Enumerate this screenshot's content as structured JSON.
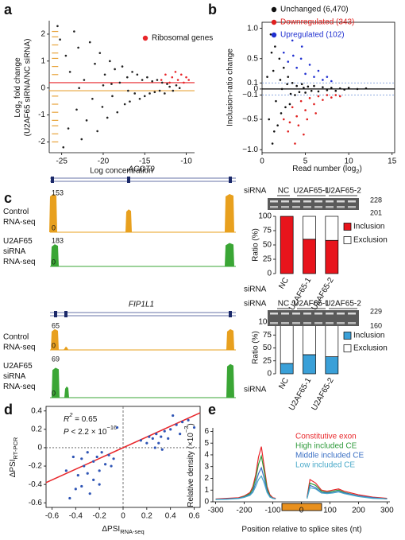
{
  "panel_labels": [
    "a",
    "b",
    "c",
    "d",
    "e"
  ],
  "chart_data": [
    {
      "type": "scatter",
      "xlabel": "Log concentration",
      "ylabel": [
        "Log",
        "2",
        " fold change",
        "(U2AF65 siRNA/NC siRNA)"
      ],
      "xlim": [
        -26.5,
        -9
      ],
      "xticks": [
        -25,
        -20,
        -15,
        -10
      ],
      "ylim": [
        -2.4,
        2.5
      ],
      "yticks": [
        -2,
        -1,
        0,
        1,
        2
      ],
      "hlines": [
        {
          "value": 0.2,
          "color": "#e8262a"
        },
        {
          "value": -0.1,
          "color": "#e8a33a"
        }
      ],
      "series": [
        {
          "color": "#222222",
          "x": [
            -25.5,
            -25.2,
            -24.8,
            -24.5,
            -24.2,
            -24,
            -23.5,
            -23.2,
            -23,
            -22.6,
            -22.3,
            -22,
            -21.6,
            -21.3,
            -21,
            -20.7,
            -20.4,
            -20.1,
            -19.8,
            -19.5,
            -19.2,
            -18.9,
            -18.6,
            -18.3,
            -18,
            -17.7,
            -17.4,
            -17.1,
            -16.8,
            -16.5,
            -16.2,
            -15.9,
            -15.6,
            -15.3,
            -15,
            -14.7,
            -14.4,
            -14.1,
            -13.8,
            -13.5,
            -13.2,
            -12.9,
            -12.6,
            -12.3,
            -12,
            -11.6,
            -11.2,
            -10.8,
            -22.9,
            -20,
            -17,
            -19
          ],
          "values": [
            2.3,
            1.8,
            -2.2,
            1.2,
            -1.5,
            0.6,
            2.1,
            -0.8,
            1.5,
            -1.9,
            0.3,
            -1.2,
            1.7,
            -0.4,
            0.9,
            -1.6,
            1.3,
            -0.7,
            0.5,
            -1.1,
            1,
            -0.3,
            0.7,
            -0.9,
            0.2,
            0.8,
            -0.6,
            0.4,
            -0.5,
            0.6,
            -0.2,
            0.5,
            -0.4,
            0.3,
            -0.3,
            0.4,
            -0.2,
            0.25,
            -0.15,
            0.3,
            -0.1,
            0.2,
            -0.2,
            0.15,
            0.05,
            -0.1,
            0.1,
            0,
            0,
            0.1,
            -0.1,
            0.15
          ]
        },
        {
          "color": "#e8a33a",
          "marker": "dash",
          "x": [
            -25.8,
            -25.8,
            -25.8,
            -25.8,
            -25.8,
            -25.8,
            -25.8,
            -25.8,
            -25.8,
            -25.8,
            -25.8,
            -25.8,
            -25.8,
            -25.8
          ],
          "values": [
            2.1,
            1.9,
            1.6,
            1.3,
            1.1,
            0.8,
            0.5,
            -0.3,
            -0.6,
            -0.9,
            -1.2,
            -1.4,
            -1.7,
            -2.0
          ]
        },
        {
          "name": "Ribosomal genes",
          "color": "#e8262a",
          "x": [
            -13,
            -12.5,
            -12,
            -11.7,
            -11.3,
            -11,
            -10.6,
            -10.3,
            -10,
            -9.7
          ],
          "values": [
            0.3,
            0.5,
            0.2,
            0.4,
            0.6,
            0.3,
            0.5,
            0.2,
            0.4,
            0.3
          ]
        }
      ]
    },
    {
      "type": "scatter",
      "frame": true,
      "xlabel": [
        "Read number (log",
        "2",
        ")"
      ],
      "ylabel": "Inclusion-ratio change",
      "xlim": [
        0,
        15.3
      ],
      "xticks": [
        0,
        5,
        10,
        15
      ],
      "ylim": [
        -1.05,
        1.1
      ],
      "yticks": [
        {
          "value": 1,
          "label": "1.0"
        },
        0.5,
        0.1,
        0,
        {
          "value": -0.1,
          "label": "−0.1"
        },
        {
          "value": -0.5,
          "label": "−0.5"
        },
        {
          "value": -1,
          "label": "−1.0"
        }
      ],
      "hlines": [
        {
          "value": 0,
          "color": "#000000"
        },
        {
          "value": 0.1,
          "color": "#6a8fd8",
          "dash": true
        },
        {
          "value": -0.1,
          "color": "#6a8fd8",
          "dash": true
        }
      ],
      "series": [
        {
          "name": "Unchanged (6,470)",
          "color": "#111111",
          "x": [
            1,
            1.2,
            1.5,
            1.8,
            2,
            2.2,
            2.5,
            2.7,
            3,
            3.2,
            3.5,
            3.8,
            4,
            4.3,
            4.6,
            5,
            5.3,
            5.7,
            6,
            6.5,
            7,
            7.5,
            8,
            8.5,
            9,
            9.5,
            10,
            11,
            12,
            1.3,
            1.6,
            2.3,
            2.9,
            0.8,
            0.6,
            3.3,
            4.8,
            1.1,
            1.4,
            2.1
          ],
          "values": [
            0.9,
            -0.9,
            0.7,
            -0.6,
            0.5,
            -0.4,
            0.35,
            -0.3,
            0.2,
            -0.25,
            0.1,
            -0.1,
            0.05,
            -0.05,
            0.08,
            -0.06,
            0.04,
            -0.03,
            0.05,
            -0.04,
            0.03,
            -0.02,
            0.02,
            -0.03,
            0.01,
            -0.01,
            0.02,
            0,
            0.01,
            0.3,
            -0.2,
            0,
            0.08,
            -0.5,
            0.2,
            -0.08,
            0.02,
            0.6,
            -0.7,
            0.15
          ]
        },
        {
          "name": "Downregulated (343)",
          "color": "#e0201f",
          "x": [
            2.5,
            3,
            3.5,
            4,
            4.5,
            5,
            5.5,
            6,
            6.5,
            7,
            7.5,
            8,
            8.5,
            9,
            3.2,
            4.2,
            5.2,
            6.2,
            3.8,
            4.8
          ],
          "values": [
            -0.5,
            -0.7,
            -0.3,
            -0.45,
            -0.2,
            -0.35,
            -0.15,
            -0.25,
            -0.12,
            -0.18,
            -0.1,
            -0.14,
            -0.1,
            -0.12,
            -0.55,
            -0.6,
            -0.5,
            -0.4,
            -0.9,
            -0.75
          ]
        },
        {
          "name": "Upregulated (102)",
          "color": "#1f2fd0",
          "x": [
            2.5,
            3,
            3.5,
            4,
            4.5,
            5,
            5.5,
            6,
            6.5,
            7,
            7.5,
            8,
            3.6,
            4.6
          ],
          "values": [
            0.6,
            0.45,
            0.8,
            0.35,
            0.5,
            0.25,
            0.4,
            0.2,
            0.3,
            0.15,
            0.2,
            0.13,
            0.55,
            0.7
          ]
        }
      ]
    },
    {
      "type": "stacked_bar",
      "ylabel": "Ratio (%)",
      "xlabel": "siRNA",
      "categories": [
        "NC",
        "U2AF65-1",
        "U2AF65-2"
      ],
      "ylim": [
        0,
        100
      ],
      "yticks": [
        0,
        25,
        50,
        75,
        100
      ],
      "series": [
        {
          "name": "Inclusion",
          "color": "#e8141c",
          "values": [
            100,
            60,
            58
          ]
        },
        {
          "name": "Exclusion",
          "color": "#ffffff",
          "values": [
            0,
            40,
            42
          ]
        }
      ]
    },
    {
      "type": "stacked_bar",
      "ylabel": "Ratio (%)",
      "xlabel": "siRNA",
      "categories": [
        "NC",
        "U2AF65-1",
        "U2AF65-2"
      ],
      "ylim": [
        0,
        100
      ],
      "yticks": [
        0,
        25,
        50,
        75,
        100
      ],
      "series": [
        {
          "name": "Inclusion",
          "color": "#3aa0d8",
          "values": [
            20,
            37,
            33
          ]
        },
        {
          "name": "Exclusion",
          "color": "#ffffff",
          "values": [
            80,
            63,
            67
          ]
        }
      ]
    },
    {
      "type": "scatter",
      "frame": true,
      "xlabel": [
        "ΔPSI",
        "RNA-seq"
      ],
      "ylabel": [
        "ΔPSI",
        "RT-PCR"
      ],
      "annotations": [
        [
          "R",
          "2",
          " = 0.65"
        ],
        [
          "P",
          " <  2.2 × 10",
          "−16"
        ]
      ],
      "xlim": [
        -0.65,
        0.65
      ],
      "xticks": [
        -0.6,
        -0.4,
        -0.2,
        0,
        0.2,
        0.4,
        0.6
      ],
      "ylim": [
        -0.65,
        0.45
      ],
      "yticks": [
        -0.6,
        -0.4,
        -0.2,
        0,
        0.2,
        0.4
      ],
      "hlines": [
        {
          "value": 0,
          "color": "#555555",
          "dash": true
        }
      ],
      "vlines": [
        {
          "value": 0,
          "color": "#555555",
          "dash": true
        }
      ],
      "fit_line": {
        "color": "#e8262a",
        "x": [
          -0.65,
          0.65
        ],
        "y": [
          -0.38,
          0.38
        ]
      },
      "series": [
        {
          "color": "#2f55b5",
          "x": [
            -0.45,
            -0.4,
            -0.38,
            -0.35,
            -0.33,
            -0.3,
            -0.3,
            -0.28,
            -0.25,
            -0.25,
            -0.22,
            -0.2,
            -0.18,
            -0.15,
            -0.12,
            -0.1,
            -0.35,
            -0.42,
            -0.48,
            -0.2,
            0.2,
            0.22,
            0.25,
            0.28,
            0.3,
            0.32,
            0.35,
            0.38,
            0.4,
            0.45,
            0.5,
            0.55,
            0.6,
            0.48,
            0.27,
            0.33,
            0.42,
            -0.05,
            0.15,
            -0.08
          ],
          "values": [
            -0.55,
            -0.45,
            -0.3,
            -0.12,
            -0.2,
            -0.05,
            -0.28,
            -0.5,
            -0.15,
            -0.35,
            -0.1,
            -0.25,
            -0.05,
            -0.18,
            -0.08,
            -0.2,
            -0.42,
            -0.1,
            -0.25,
            -0.4,
            0.05,
            0.12,
            0.1,
            0.15,
            0.05,
            0.12,
            0.18,
            0.1,
            0.2,
            0.25,
            0.28,
            0.3,
            0.22,
            0.15,
            0,
            -0.02,
            0.35,
            0.22,
            0.08,
            -0.12
          ]
        }
      ]
    },
    {
      "type": "line",
      "xlabel": "Position relative to splice sites (nt)",
      "ylabel": [
        "Relative density (×10",
        "−3",
        ")"
      ],
      "xlim": [
        -310,
        310
      ],
      "xticks": [
        -300,
        -200,
        -100,
        0,
        100,
        200,
        300
      ],
      "ylim": [
        0,
        6.3
      ],
      "yticks": [
        0,
        1,
        2,
        3,
        4,
        5,
        6
      ],
      "x": [
        -300,
        -260,
        -220,
        -200,
        -180,
        -170,
        -160,
        -150,
        -140,
        -130,
        -120,
        -110,
        -100,
        -90,
        -40,
        20,
        30,
        50,
        70,
        90,
        110,
        130,
        150,
        200,
        250,
        300
      ],
      "series": [
        {
          "name": "Constitutive exon",
          "color": "#e8262a",
          "values": [
            0.25,
            0.3,
            0.35,
            0.5,
            0.8,
            1.3,
            2.3,
            3.8,
            4.7,
            3.0,
            1.3,
            0.6,
            0.35,
            0.3,
            null,
            0.4,
            1.9,
            1.6,
            1.0,
            0.9,
            1.0,
            1.1,
            0.9,
            0.6,
            0.4,
            0.3
          ]
        },
        {
          "name": "High included CE",
          "color": "#2e9a3a",
          "values": [
            0.2,
            0.25,
            0.3,
            0.45,
            0.7,
            1.1,
            2.0,
            3.2,
            3.9,
            2.6,
            1.1,
            0.5,
            0.3,
            0.25,
            null,
            0.3,
            1.6,
            1.4,
            0.9,
            0.8,
            0.9,
            1.0,
            0.8,
            0.5,
            0.35,
            0.25
          ]
        },
        {
          "name": "Middle included CE",
          "color": "#3a6fc4",
          "values": [
            0.2,
            0.25,
            0.3,
            0.4,
            0.6,
            0.9,
            1.6,
            2.4,
            2.9,
            2.0,
            0.9,
            0.45,
            0.3,
            0.25,
            null,
            0.3,
            1.4,
            1.2,
            0.8,
            0.75,
            0.8,
            0.9,
            0.75,
            0.5,
            0.35,
            0.25
          ]
        },
        {
          "name": "Low included CE",
          "color": "#49a9c9",
          "values": [
            0.2,
            0.22,
            0.28,
            0.38,
            0.55,
            0.8,
            1.3,
            1.9,
            2.2,
            1.6,
            0.8,
            0.4,
            0.3,
            0.25,
            null,
            0.3,
            1.2,
            1.1,
            0.75,
            0.7,
            0.75,
            0.85,
            0.7,
            0.45,
            0.3,
            0.25
          ]
        }
      ]
    }
  ],
  "gene_panels": [
    {
      "gene": "ACOT9",
      "tracks": [
        {
          "label": [
            "Control",
            "RNA-seq"
          ],
          "max": 153,
          "min": 0
        },
        {
          "label": [
            "U2AF65",
            "siRNA",
            "RNA-seq"
          ],
          "max": 183,
          "min": 0
        }
      ],
      "gel": {
        "label": "siRNA",
        "lanes": [
          "NC",
          "U2AF65-1",
          "U2AF65-2"
        ],
        "sizes": [
          228,
          201
        ]
      }
    },
    {
      "gene": "FIP1L1",
      "tracks": [
        {
          "label": [
            "Control",
            "RNA-seq"
          ],
          "max": 65,
          "min": 0
        },
        {
          "label": [
            "U2AF65",
            "siRNA",
            "RNA-seq"
          ],
          "max": 69,
          "min": 0
        }
      ],
      "gel": {
        "label": "siRNA",
        "lanes": [
          "NC",
          "U2AF65-1",
          "U2AF65-2"
        ],
        "sizes": [
          229,
          160
        ]
      }
    }
  ]
}
